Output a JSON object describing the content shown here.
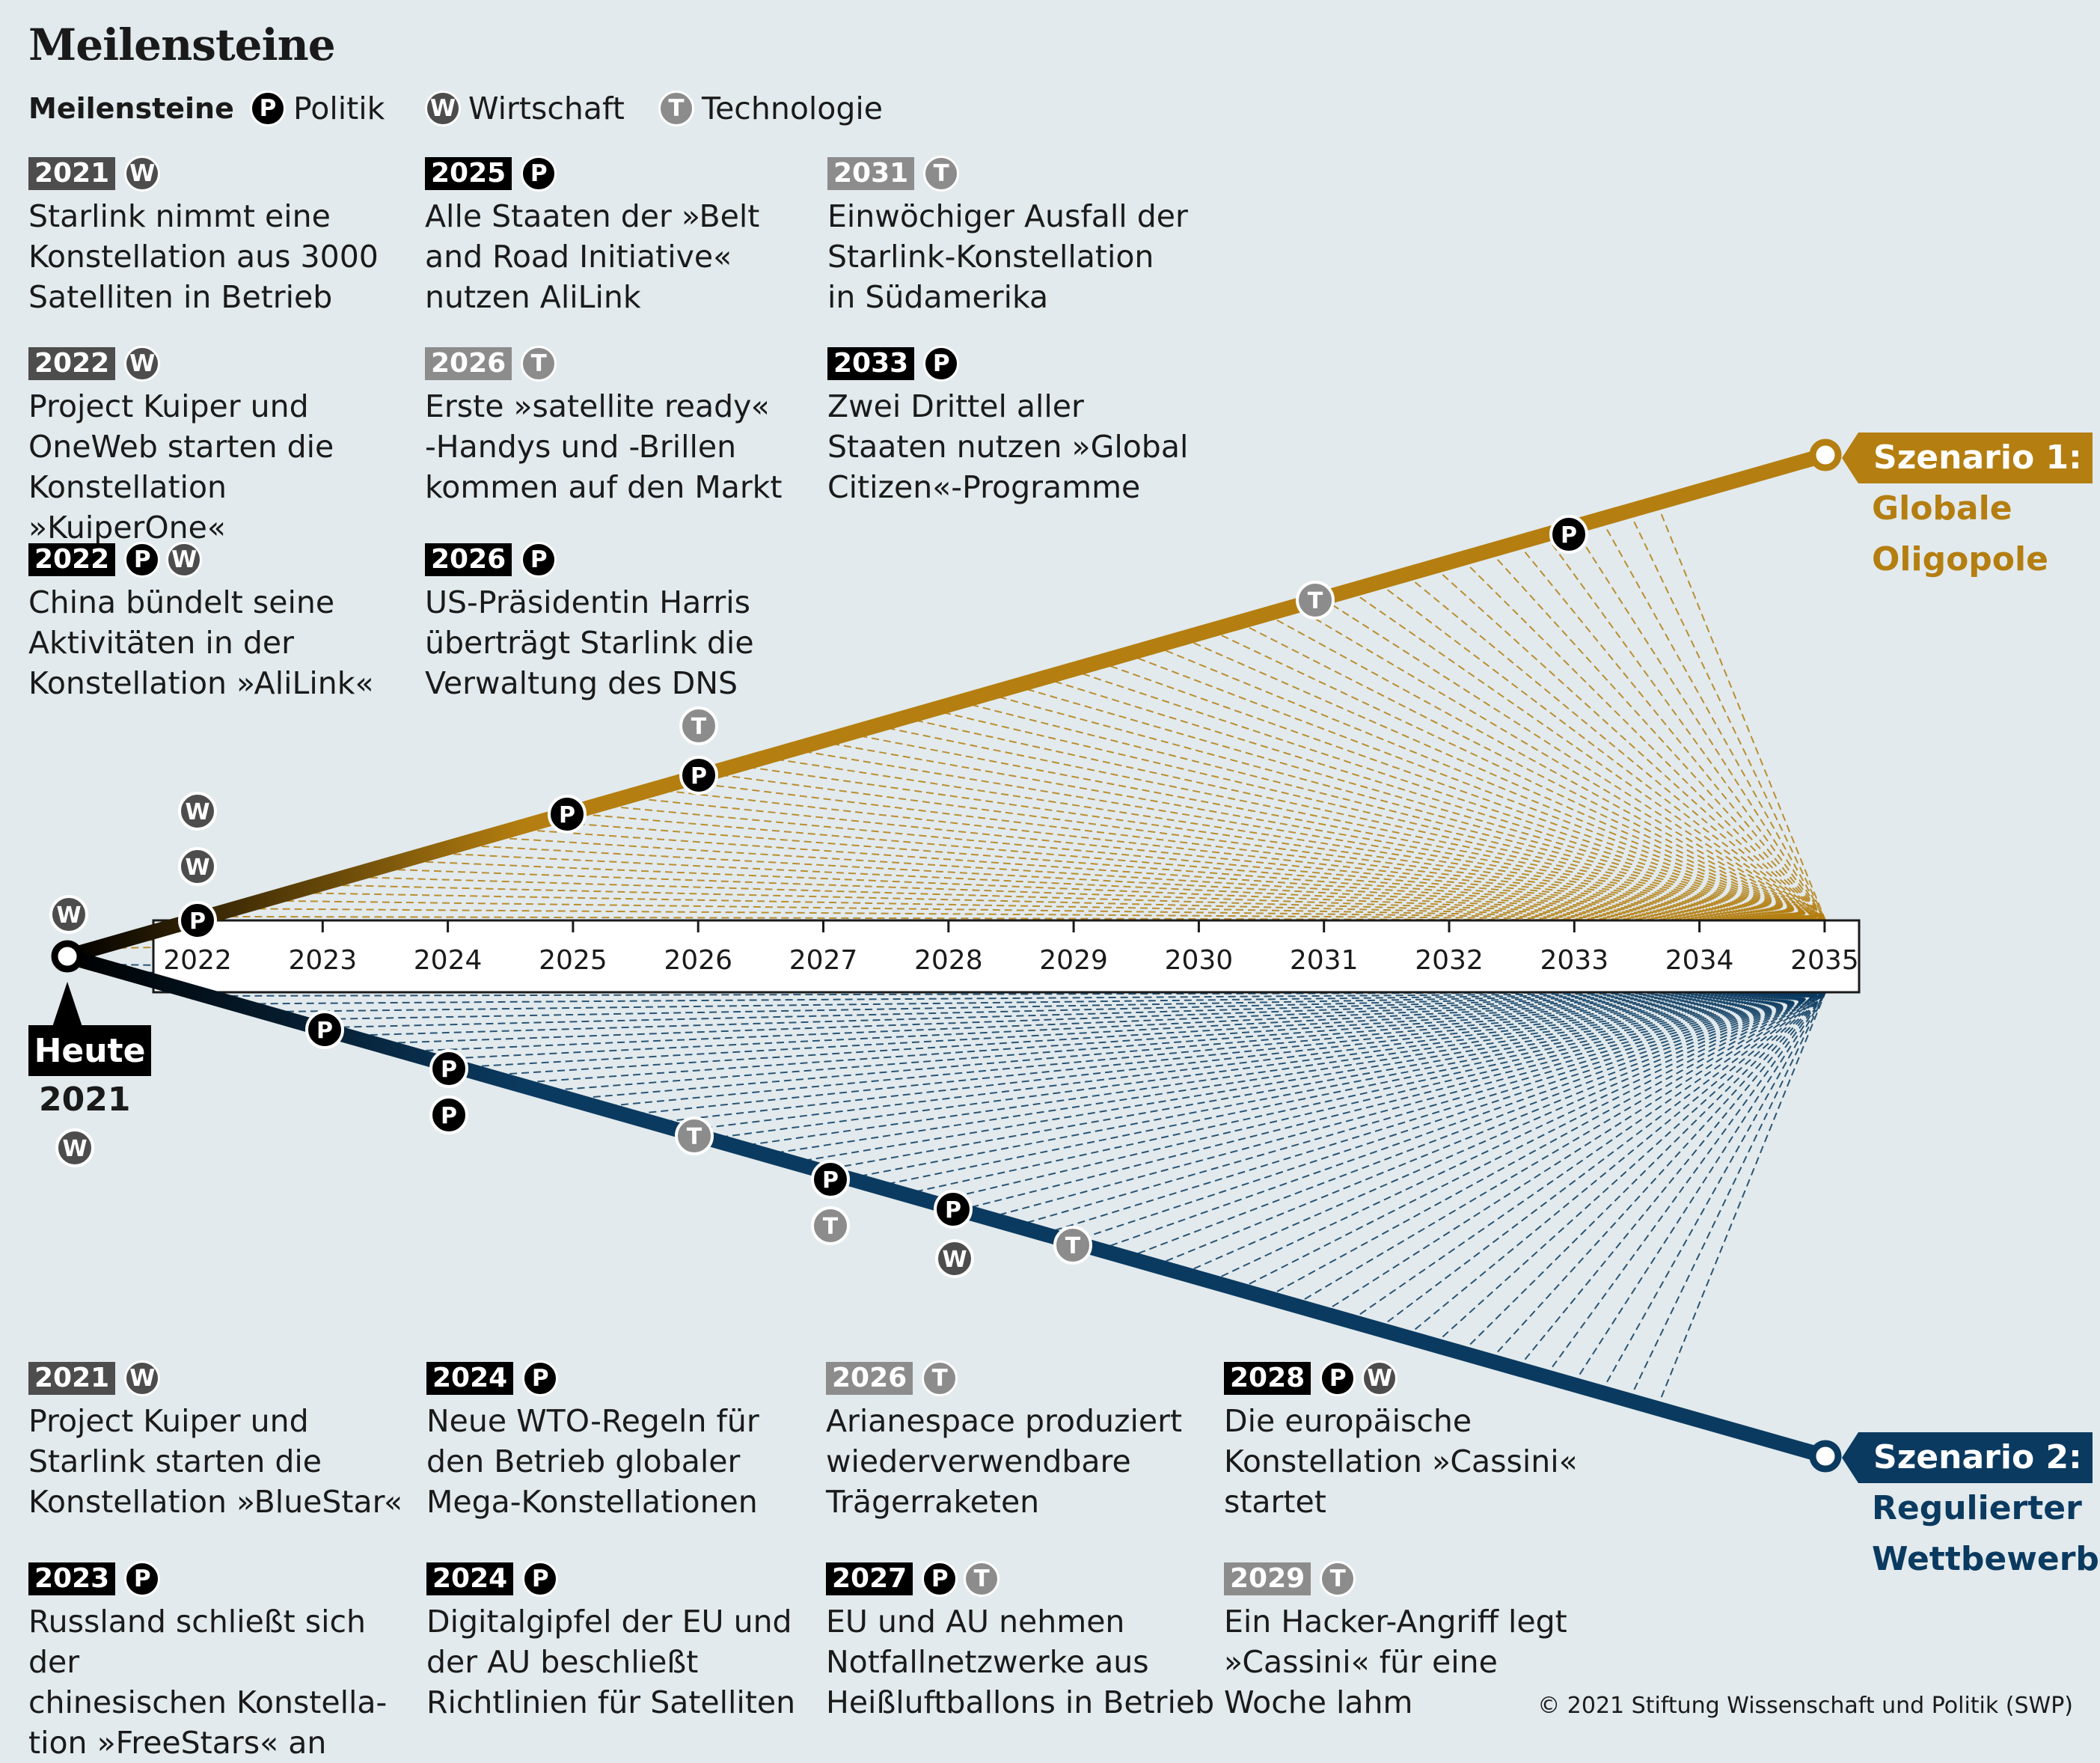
{
  "title": "Meilensteine",
  "legend": {
    "title": "Meilensteine",
    "items": [
      {
        "letter": "P",
        "label": "Politik"
      },
      {
        "letter": "W",
        "label": "Wirtschaft"
      },
      {
        "letter": "T",
        "label": "Technologie"
      }
    ]
  },
  "scenario1_milestones": [
    {
      "year": "2021",
      "badges": [
        "W"
      ],
      "text": "Starlink nimmt eine\nKonstellation aus 3000\nSatelliten in Betrieb"
    },
    {
      "year": "2022",
      "badges": [
        "W"
      ],
      "text": "Project Kuiper und\nOneWeb starten die\nKonstellation »KuiperOne«"
    },
    {
      "year": "2022",
      "badges": [
        "P",
        "W"
      ],
      "text": "China bündelt seine\nAktivitäten in der\nKonstellation »AliLink«"
    },
    {
      "year": "2025",
      "badges": [
        "P"
      ],
      "text": "Alle Staaten der »Belt\nand Road Initiative«\nnutzen AliLink"
    },
    {
      "year": "2026",
      "badges": [
        "T"
      ],
      "text": "Erste »satellite ready«\n-Handys und -Brillen\nkommen auf den Markt"
    },
    {
      "year": "2026",
      "badges": [
        "P"
      ],
      "text": "US-Präsidentin Harris\nüberträgt Starlink die\nVerwaltung des DNS"
    },
    {
      "year": "2031",
      "badges": [
        "T"
      ],
      "text": "Einwöchiger Ausfall der\nStarlink-Konstellation\nin Südamerika"
    },
    {
      "year": "2033",
      "badges": [
        "P"
      ],
      "text": "Zwei Drittel aller\nStaaten nutzen »Global\nCitizen«-Programme"
    }
  ],
  "scenario2_milestones": [
    {
      "year": "2021",
      "badges": [
        "W"
      ],
      "text": "Project Kuiper und\nStarlink starten die\nKonstellation »BlueStar«"
    },
    {
      "year": "2023",
      "badges": [
        "P"
      ],
      "text": "Russland schließt sich der\nchinesischen Konstella-\ntion »FreeStars« an"
    },
    {
      "year": "2024",
      "badges": [
        "P"
      ],
      "text": "Neue WTO-Regeln für\nden Betrieb globaler\nMega-Konstellationen"
    },
    {
      "year": "2024",
      "badges": [
        "P"
      ],
      "text": "Digitalgipfel der EU und\nder AU beschließt\nRichtlinien für Satelliten"
    },
    {
      "year": "2026",
      "badges": [
        "T"
      ],
      "text": "Arianespace produziert\nwiederverwendbare\nTrägerraketen"
    },
    {
      "year": "2027",
      "badges": [
        "P",
        "T"
      ],
      "text": "EU und AU nehmen\nNotfallnetzwerke aus\nHeißluftballons in Betrieb"
    },
    {
      "year": "2028",
      "badges": [
        "P",
        "W"
      ],
      "text": "Die europäische\nKonstellation »Cassini«\nstartet"
    },
    {
      "year": "2029",
      "badges": [
        "T"
      ],
      "text": "Ein Hacker-Angriff legt\n»Cassini« für eine\nWoche lahm"
    }
  ],
  "timeline": {
    "years": [
      "2022",
      "2023",
      "2024",
      "2025",
      "2026",
      "2027",
      "2028",
      "2029",
      "2030",
      "2031",
      "2032",
      "2033",
      "2034",
      "2035"
    ],
    "start_label": "Heute",
    "start_year": "2021"
  },
  "scenario1": {
    "tag": "Szenario 1:",
    "subtitle": [
      "Globale",
      "Oligopole"
    ],
    "color": "#b47e10"
  },
  "scenario2": {
    "tag": "Szenario 2:",
    "subtitle": [
      "Regulierter",
      "Wettbewerb"
    ],
    "color": "#0b3a60"
  },
  "badge_colors": {
    "P": "#000000",
    "W": "#4d4d4d",
    "T": "#8c8c8c"
  },
  "copyright": "© 2021 Stiftung Wissenschaft und Politik (SWP)"
}
